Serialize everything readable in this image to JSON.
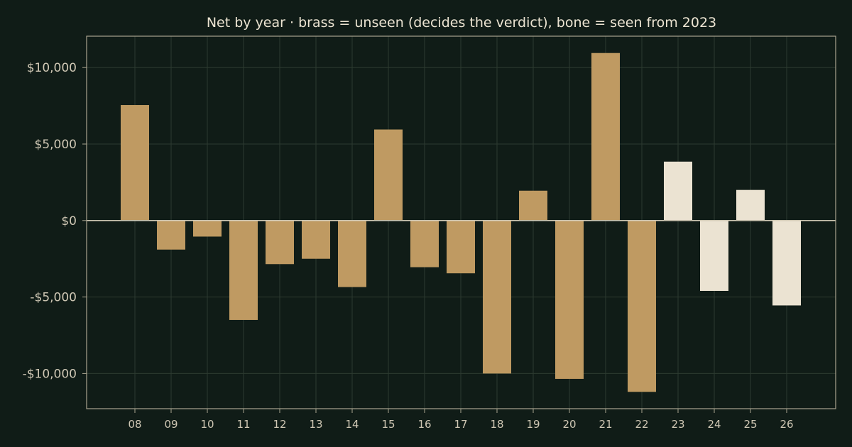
{
  "chart_data": {
    "type": "bar",
    "title": "Net by year  ·  brass = unseen (decides the verdict), bone = seen from 2023",
    "xlabel": "",
    "ylabel": "",
    "categories": [
      "08",
      "09",
      "10",
      "11",
      "12",
      "13",
      "14",
      "15",
      "16",
      "17",
      "18",
      "19",
      "20",
      "21",
      "22",
      "23",
      "24",
      "25",
      "26"
    ],
    "values": [
      7550,
      -1900,
      -1050,
      -6500,
      -2850,
      -2500,
      -4350,
      5950,
      -3050,
      -3450,
      -10000,
      1950,
      -10350,
      10950,
      -11200,
      3850,
      -4600,
      2000,
      -5550
    ],
    "groups": [
      "unseen",
      "unseen",
      "unseen",
      "unseen",
      "unseen",
      "unseen",
      "unseen",
      "unseen",
      "unseen",
      "unseen",
      "unseen",
      "unseen",
      "unseen",
      "unseen",
      "unseen",
      "seen",
      "seen",
      "seen",
      "seen"
    ],
    "colors": {
      "unseen": "#bf9a62",
      "seen": "#ebe3d2"
    },
    "ylim": [
      -12300,
      12050
    ],
    "yticks": [
      10000,
      5000,
      0,
      -5000,
      -10000
    ],
    "ytick_labels": [
      "$10,000",
      "$5,000",
      "$0",
      "-$5,000",
      "-$10,000"
    ],
    "grid": true,
    "legend": "none"
  }
}
